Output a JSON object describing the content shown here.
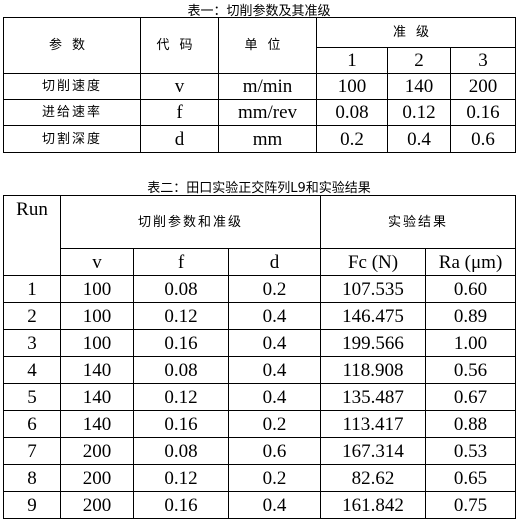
{
  "table1": {
    "title": "表一：切削参数及其准级",
    "headers": [
      "参数",
      "代码",
      "单位",
      "准级"
    ],
    "levels": [
      "1",
      "2",
      "3"
    ],
    "rows": [
      [
        "切削速度",
        "v",
        "m/min",
        "100",
        "140",
        "200"
      ],
      [
        "进给速率",
        "f",
        "mm/rev",
        "0.08",
        "0.12",
        "0.16"
      ],
      [
        "切割深度",
        "d",
        "mm",
        "0.2",
        "0.4",
        "0.6"
      ]
    ]
  },
  "table2": {
    "title": "表二：田口实验正交阵列L9和实验结果",
    "headers": [
      "Run",
      "切削参数和准级",
      "实验结果"
    ],
    "subheaders": [
      "v",
      "f",
      "d",
      "Fc (N)",
      "Ra (μm)"
    ],
    "rows": [
      [
        "1",
        "100",
        "0.08",
        "0.2",
        "107.535",
        "0.60"
      ],
      [
        "2",
        "100",
        "0.12",
        "0.4",
        "146.475",
        "0.89"
      ],
      [
        "3",
        "100",
        "0.16",
        "0.4",
        "199.566",
        "1.00"
      ],
      [
        "4",
        "140",
        "0.08",
        "0.4",
        "118.908",
        "0.56"
      ],
      [
        "5",
        "140",
        "0.12",
        "0.4",
        "135.487",
        "0.67"
      ],
      [
        "6",
        "140",
        "0.16",
        "0.2",
        "113.417",
        "0.88"
      ],
      [
        "7",
        "200",
        "0.08",
        "0.6",
        "167.314",
        "0.53"
      ],
      [
        "8",
        "200",
        "0.12",
        "0.2",
        "82.62",
        "0.65"
      ],
      [
        "9",
        "200",
        "0.16",
        "0.4",
        "161.842",
        "0.75"
      ]
    ]
  }
}
